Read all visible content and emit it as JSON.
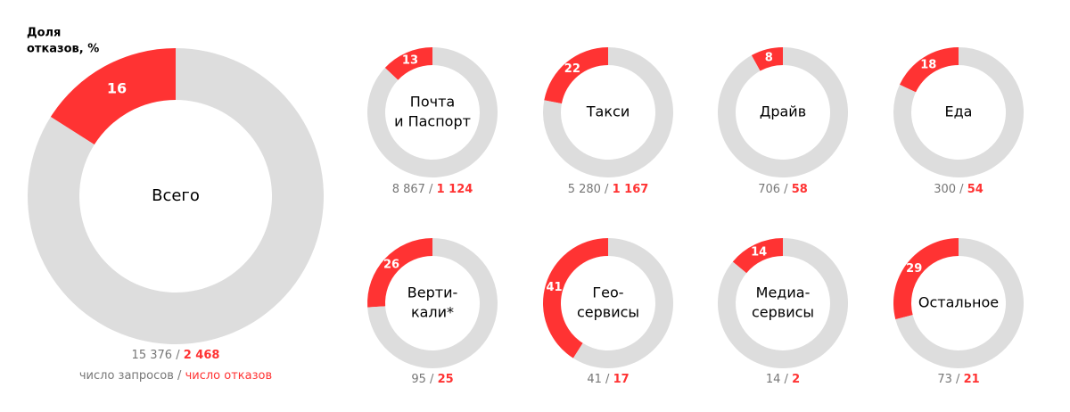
{
  "legend": {
    "title": [
      "Доля",
      "отказов, %"
    ],
    "requests_label": "число запросов",
    "separator": "/",
    "rejections_label": "число отказов"
  },
  "chart_data": [
    {
      "type": "pie",
      "title": [
        "Всего"
      ],
      "values": [
        16,
        84
      ],
      "value_labels": [
        "16",
        null
      ],
      "colors": [
        "#ff3333",
        "#dddddd"
      ],
      "requests": "15 376",
      "rejections": "2 468"
    },
    {
      "type": "pie",
      "title": [
        "Почта",
        "и Паспорт"
      ],
      "values": [
        13,
        87
      ],
      "value_labels": [
        "13",
        null
      ],
      "colors": [
        "#ff3333",
        "#dddddd"
      ],
      "requests": "8 867",
      "rejections": "1 124"
    },
    {
      "type": "pie",
      "title": [
        "Такси"
      ],
      "values": [
        22,
        78
      ],
      "value_labels": [
        "22",
        null
      ],
      "colors": [
        "#ff3333",
        "#dddddd"
      ],
      "requests": "5 280",
      "rejections": "1 167"
    },
    {
      "type": "pie",
      "title": [
        "Драйв"
      ],
      "values": [
        8,
        92
      ],
      "value_labels": [
        "8",
        null
      ],
      "colors": [
        "#ff3333",
        "#dddddd"
      ],
      "requests": "706",
      "rejections": "58"
    },
    {
      "type": "pie",
      "title": [
        "Еда"
      ],
      "values": [
        18,
        82
      ],
      "value_labels": [
        "18",
        null
      ],
      "colors": [
        "#ff3333",
        "#dddddd"
      ],
      "requests": "300",
      "rejections": "54"
    },
    {
      "type": "pie",
      "title": [
        "Верти-",
        "кали*"
      ],
      "values": [
        26,
        74
      ],
      "value_labels": [
        "26",
        null
      ],
      "colors": [
        "#ff3333",
        "#dddddd"
      ],
      "requests": "95",
      "rejections": "25"
    },
    {
      "type": "pie",
      "title": [
        "Гео-",
        "сервисы"
      ],
      "values": [
        41,
        59
      ],
      "value_labels": [
        "41",
        null
      ],
      "colors": [
        "#ff3333",
        "#dddddd"
      ],
      "requests": "41",
      "rejections": "17"
    },
    {
      "type": "pie",
      "title": [
        "Медиа-",
        "сервисы"
      ],
      "values": [
        14,
        86
      ],
      "value_labels": [
        "14",
        null
      ],
      "colors": [
        "#ff3333",
        "#dddddd"
      ],
      "requests": "14",
      "rejections": "2"
    },
    {
      "type": "pie",
      "title": [
        "Остальное"
      ],
      "values": [
        29,
        71
      ],
      "value_labels": [
        "29",
        null
      ],
      "colors": [
        "#ff3333",
        "#dddddd"
      ],
      "requests": "73",
      "rejections": "21"
    }
  ]
}
